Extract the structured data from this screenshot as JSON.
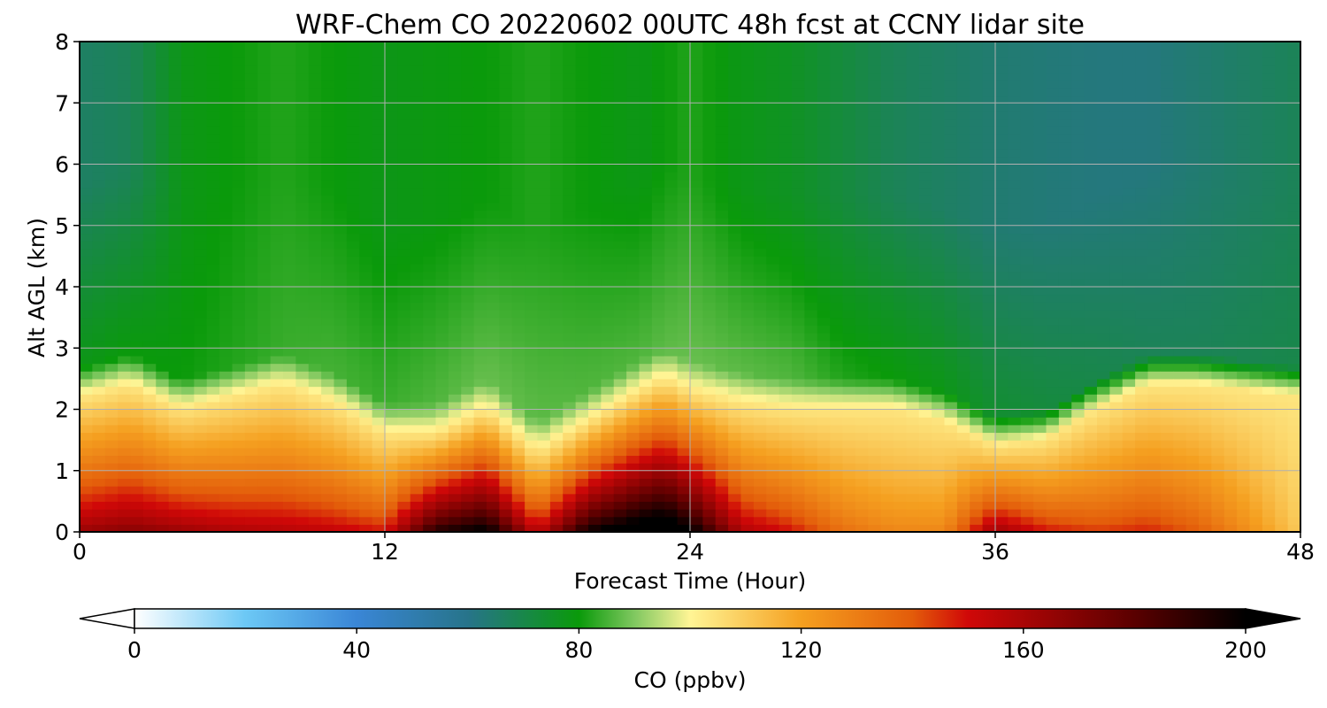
{
  "chart_data": {
    "type": "heatmap",
    "title": "WRF-Chem CO  20220602 00UTC 48h fcst at CCNY lidar site",
    "xlabel": "Forecast Time (Hour)",
    "ylabel": "Alt AGL (km)",
    "xlim": [
      0,
      48
    ],
    "ylim": [
      0,
      8
    ],
    "x_ticks": [
      "0",
      "12",
      "24",
      "36",
      "48"
    ],
    "y_ticks": [
      "0",
      "1",
      "2",
      "3",
      "4",
      "5",
      "6",
      "7",
      "8"
    ],
    "grid": true,
    "colorbar": {
      "label": "CO  (ppbv)",
      "range": [
        0,
        200
      ],
      "ticks": [
        "0",
        "40",
        "80",
        "120",
        "160",
        "200"
      ],
      "extend": "both",
      "levels": [
        {
          "v": 0,
          "color": "#ffffff"
        },
        {
          "v": 20,
          "color": "#6cc8f5"
        },
        {
          "v": 40,
          "color": "#3a86d6"
        },
        {
          "v": 60,
          "color": "#27748a"
        },
        {
          "v": 80,
          "color": "#0a9a0a"
        },
        {
          "v": 90,
          "color": "#80c860"
        },
        {
          "v": 100,
          "color": "#fff595"
        },
        {
          "v": 120,
          "color": "#f5a020"
        },
        {
          "v": 140,
          "color": "#e35c0a"
        },
        {
          "v": 150,
          "color": "#d00808"
        },
        {
          "v": 180,
          "color": "#5a0000"
        },
        {
          "v": 200,
          "color": "#000000"
        }
      ]
    },
    "profile_model": "approximate CO (ppbv) field: bottom values b(t), boundary-layer top h(t) in km, mid-level values m(t), upper-level values u(t)",
    "times": [
      0,
      2,
      4,
      6,
      8,
      10,
      12,
      14,
      16,
      18,
      20,
      22,
      23,
      24,
      26,
      28,
      30,
      32,
      34,
      36,
      38,
      40,
      42,
      44,
      46,
      48
    ],
    "surface_co": [
      165,
      170,
      165,
      160,
      158,
      155,
      150,
      195,
      205,
      155,
      200,
      215,
      220,
      205,
      160,
      150,
      135,
      128,
      128,
      165,
      150,
      145,
      148,
      140,
      125,
      110
    ],
    "bl_top_km": [
      2.2,
      2.4,
      2.0,
      2.2,
      2.4,
      2.1,
      1.6,
      1.6,
      2.0,
      1.3,
      1.8,
      2.3,
      2.5,
      2.3,
      2.1,
      2.0,
      2.0,
      2.0,
      1.8,
      1.4,
      1.5,
      2.0,
      2.4,
      2.4,
      2.3,
      2.2
    ],
    "midlevel_co": [
      78,
      80,
      80,
      82,
      84,
      85,
      84,
      86,
      88,
      87,
      86,
      86,
      87,
      88,
      87,
      86,
      82,
      80,
      78,
      74,
      72,
      70,
      68,
      68,
      69,
      70
    ],
    "upper_co": [
      66,
      68,
      78,
      80,
      82,
      80,
      78,
      79,
      80,
      82,
      80,
      78,
      80,
      82,
      78,
      76,
      72,
      68,
      66,
      64,
      63,
      62,
      62,
      64,
      66,
      68
    ]
  }
}
